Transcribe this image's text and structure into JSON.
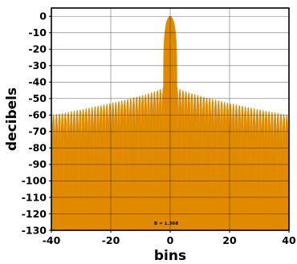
{
  "chart_data": {
    "type": "area",
    "xlabel": "bins",
    "ylabel": "decibels",
    "xlim": [
      -40,
      40
    ],
    "ylim": [
      -130,
      5
    ],
    "xticks": [
      -40,
      -20,
      0,
      20,
      40
    ],
    "yticks": [
      0,
      -10,
      -20,
      -30,
      -40,
      -50,
      -60,
      -70,
      -80,
      -90,
      -100,
      -110,
      -120,
      -130
    ],
    "grid": true,
    "annotation": "B = 1.368",
    "fill_color": "#e08a00",
    "series": [
      {
        "values_description": "window spectrum: main lobe peak 0 dB at bin 0, first null near bin ±2.3, first sidelobe about -43 dB, sidelobe peaks decaying to about -60 dB at bins ±40, lobe minima dropping to about -130 dB",
        "mainlobe_peak_db": 0,
        "first_sidelobe_db": -43,
        "edge_sidelobe_db": -60,
        "floor_db": -130
      }
    ]
  }
}
